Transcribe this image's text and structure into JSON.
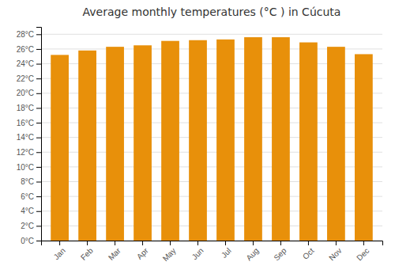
{
  "chart_data": {
    "type": "bar",
    "title": "Average monthly temperatures (°C ) in Cúcuta",
    "categories": [
      "Jan",
      "Feb",
      "Mar",
      "Apr",
      "May",
      "Jun",
      "Jul",
      "Aug",
      "Sep",
      "Oct",
      "Nov",
      "Dec"
    ],
    "values": [
      25.2,
      25.8,
      26.3,
      26.5,
      27.1,
      27.2,
      27.3,
      27.6,
      27.6,
      26.9,
      26.3,
      25.3
    ],
    "color": "#E8900A",
    "ylim": [
      0,
      29
    ],
    "yticks": [
      {
        "value": 0,
        "label": "0°C"
      },
      {
        "value": 2,
        "label": "2°C"
      },
      {
        "value": 4,
        "label": "4°C"
      },
      {
        "value": 6,
        "label": "6°C"
      },
      {
        "value": 8,
        "label": "8°C"
      },
      {
        "value": 10,
        "label": "10°C"
      },
      {
        "value": 12,
        "label": "12°C"
      },
      {
        "value": 14,
        "label": "14°C"
      },
      {
        "value": 16,
        "label": "16°C"
      },
      {
        "value": 18,
        "label": "18°C"
      },
      {
        "value": 20,
        "label": "20°C"
      },
      {
        "value": 22,
        "label": "22°C"
      },
      {
        "value": 24,
        "label": "24°C"
      },
      {
        "value": 26,
        "label": "26°C"
      },
      {
        "value": 28,
        "label": "28°C"
      }
    ],
    "grid": true
  }
}
